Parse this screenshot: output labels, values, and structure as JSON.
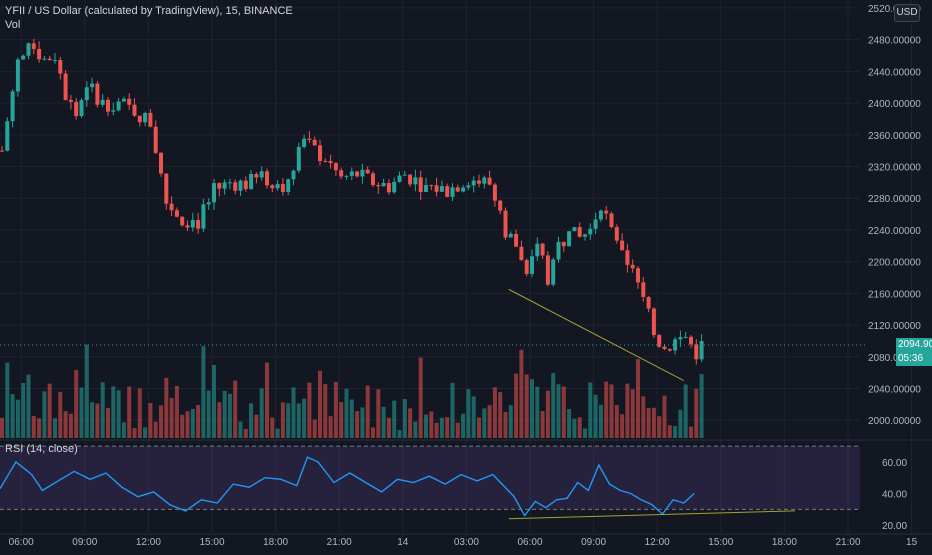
{
  "legend": {
    "title": "YFII / US Dollar (calculated by TradingView), 15, BINANCE",
    "volume_label": "Vol",
    "rsi_label": "RSI (14, close)"
  },
  "currency_button": "USD",
  "price_axis": {
    "ticks": [
      "2520.00000",
      "2480.00000",
      "2440.00000",
      "2400.00000",
      "2360.00000",
      "2320.00000",
      "2280.00000",
      "2240.00000",
      "2200.00000",
      "2160.00000",
      "2120.00000",
      "2080.00000",
      "2040.00000",
      "2000.00000"
    ],
    "last_price": "2094.90363",
    "countdown": "05:36"
  },
  "rsi_axis": {
    "ticks": [
      "60.00",
      "40.00",
      "20.00"
    ]
  },
  "time_axis": {
    "ticks": [
      "06:00",
      "09:00",
      "12:00",
      "15:00",
      "18:00",
      "21:00",
      "14",
      "03:00",
      "06:00",
      "09:00",
      "12:00",
      "15:00",
      "18:00",
      "21:00",
      "15"
    ]
  },
  "colors": {
    "background": "#131722",
    "up": "#26a69a",
    "down": "#ef5350",
    "rsi_line": "#2196f3",
    "rsi_band": "#7e57c2",
    "trendline": "#a5a034",
    "last_price_label": "#26a69a",
    "grid": "#1f2330"
  },
  "chart_data": [
    {
      "type": "candlestick",
      "title": "YFII / US Dollar (calculated by TradingView), 15, BINANCE",
      "interval": "15",
      "exchange": "BINANCE",
      "x_axis": "time",
      "ylim": [
        1975,
        2530
      ],
      "y_scale": "linear",
      "grid": true,
      "last_price": 2094.90363,
      "close_anchors": [
        {
          "time": "05:00",
          "close": 2340
        },
        {
          "time": "05:45",
          "close": 2455
        },
        {
          "time": "06:30",
          "close": 2470
        },
        {
          "time": "07:00",
          "close": 2455
        },
        {
          "time": "07:30",
          "close": 2460
        },
        {
          "time": "08:00",
          "close": 2410
        },
        {
          "time": "08:30",
          "close": 2385
        },
        {
          "time": "09:00",
          "close": 2425
        },
        {
          "time": "09:45",
          "close": 2400
        },
        {
          "time": "10:30",
          "close": 2400
        },
        {
          "time": "11:15",
          "close": 2390
        },
        {
          "time": "12:00",
          "close": 2375
        },
        {
          "time": "12:45",
          "close": 2275
        },
        {
          "time": "13:30",
          "close": 2255
        },
        {
          "time": "14:15",
          "close": 2250
        },
        {
          "time": "15:00",
          "close": 2290
        },
        {
          "time": "15:45",
          "close": 2300
        },
        {
          "time": "16:30",
          "close": 2298
        },
        {
          "time": "17:15",
          "close": 2305
        },
        {
          "time": "18:00",
          "close": 2300
        },
        {
          "time": "18:30",
          "close": 2295
        },
        {
          "time": "19:00",
          "close": 2355
        },
        {
          "time": "19:30",
          "close": 2345
        },
        {
          "time": "20:15",
          "close": 2330
        },
        {
          "time": "21:00",
          "close": 2305
        },
        {
          "time": "21:45",
          "close": 2310
        },
        {
          "time": "22:30",
          "close": 2300
        },
        {
          "time": "23:15",
          "close": 2295
        },
        {
          "time": "00:00",
          "close": 2310
        },
        {
          "time": "01:00",
          "close": 2295
        },
        {
          "time": "02:00",
          "close": 2290
        },
        {
          "time": "03:00",
          "close": 2305
        },
        {
          "time": "04:00",
          "close": 2298
        },
        {
          "time": "04:45",
          "close": 2240
        },
        {
          "time": "05:15",
          "close": 2220
        },
        {
          "time": "05:45",
          "close": 2175
        },
        {
          "time": "06:15",
          "close": 2230
        },
        {
          "time": "06:45",
          "close": 2180
        },
        {
          "time": "07:15",
          "close": 2220
        },
        {
          "time": "07:45",
          "close": 2235
        },
        {
          "time": "08:15",
          "close": 2230
        },
        {
          "time": "08:45",
          "close": 2240
        },
        {
          "time": "09:15",
          "close": 2275
        },
        {
          "time": "09:45",
          "close": 2235
        },
        {
          "time": "10:15",
          "close": 2205
        },
        {
          "time": "10:45",
          "close": 2195
        },
        {
          "time": "11:15",
          "close": 2150
        },
        {
          "time": "11:45",
          "close": 2110
        },
        {
          "time": "12:15",
          "close": 2090
        },
        {
          "time": "12:45",
          "close": 2100
        },
        {
          "time": "13:15",
          "close": 2105
        },
        {
          "time": "13:45",
          "close": 2085
        },
        {
          "time": "14:00",
          "close": 2095
        }
      ],
      "trendline": [
        {
          "time": "05:00",
          "price": 2165
        },
        {
          "time": "13:15",
          "price": 2050
        }
      ]
    },
    {
      "type": "bar",
      "title": "Vol",
      "note": "volume histogram, colored by candle direction",
      "units": "relative"
    },
    {
      "type": "line",
      "title": "RSI (14, close)",
      "ylim": [
        15,
        72
      ],
      "band": [
        30,
        70
      ],
      "levels": [
        30,
        70
      ],
      "series": [
        {
          "name": "RSI (14, close)",
          "points": [
            {
              "time": "05:00",
              "value": 43
            },
            {
              "time": "05:45",
              "value": 60
            },
            {
              "time": "06:30",
              "value": 52
            },
            {
              "time": "07:00",
              "value": 42
            },
            {
              "time": "08:00",
              "value": 50
            },
            {
              "time": "08:30",
              "value": 54
            },
            {
              "time": "09:15",
              "value": 49
            },
            {
              "time": "10:00",
              "value": 53
            },
            {
              "time": "10:45",
              "value": 44
            },
            {
              "time": "11:30",
              "value": 38
            },
            {
              "time": "12:15",
              "value": 41
            },
            {
              "time": "13:00",
              "value": 33
            },
            {
              "time": "13:45",
              "value": 29
            },
            {
              "time": "14:30",
              "value": 36
            },
            {
              "time": "15:15",
              "value": 34
            },
            {
              "time": "16:00",
              "value": 46
            },
            {
              "time": "16:45",
              "value": 44
            },
            {
              "time": "17:30",
              "value": 50
            },
            {
              "time": "18:15",
              "value": 49
            },
            {
              "time": "19:00",
              "value": 45
            },
            {
              "time": "19:30",
              "value": 63
            },
            {
              "time": "20:00",
              "value": 60
            },
            {
              "time": "20:45",
              "value": 47
            },
            {
              "time": "21:30",
              "value": 53
            },
            {
              "time": "22:15",
              "value": 47
            },
            {
              "time": "23:00",
              "value": 41
            },
            {
              "time": "23:45",
              "value": 49
            },
            {
              "time": "00:30",
              "value": 47
            },
            {
              "time": "01:15",
              "value": 51
            },
            {
              "time": "02:00",
              "value": 46
            },
            {
              "time": "02:45",
              "value": 52
            },
            {
              "time": "03:30",
              "value": 48
            },
            {
              "time": "04:15",
              "value": 52
            },
            {
              "time": "04:45",
              "value": 45
            },
            {
              "time": "05:15",
              "value": 38
            },
            {
              "time": "05:45",
              "value": 26
            },
            {
              "time": "06:15",
              "value": 35
            },
            {
              "time": "06:45",
              "value": 31
            },
            {
              "time": "07:15",
              "value": 36
            },
            {
              "time": "07:45",
              "value": 37
            },
            {
              "time": "08:15",
              "value": 47
            },
            {
              "time": "08:45",
              "value": 42
            },
            {
              "time": "09:15",
              "value": 58
            },
            {
              "time": "09:45",
              "value": 46
            },
            {
              "time": "10:15",
              "value": 42
            },
            {
              "time": "10:45",
              "value": 40
            },
            {
              "time": "11:15",
              "value": 36
            },
            {
              "time": "11:45",
              "value": 33
            },
            {
              "time": "12:15",
              "value": 27
            },
            {
              "time": "12:45",
              "value": 36
            },
            {
              "time": "13:15",
              "value": 34
            },
            {
              "time": "13:45",
              "value": 40
            }
          ]
        }
      ],
      "trendline": [
        {
          "time": "05:00",
          "value": 24
        },
        {
          "time": "18:30",
          "value": 29
        }
      ]
    }
  ]
}
